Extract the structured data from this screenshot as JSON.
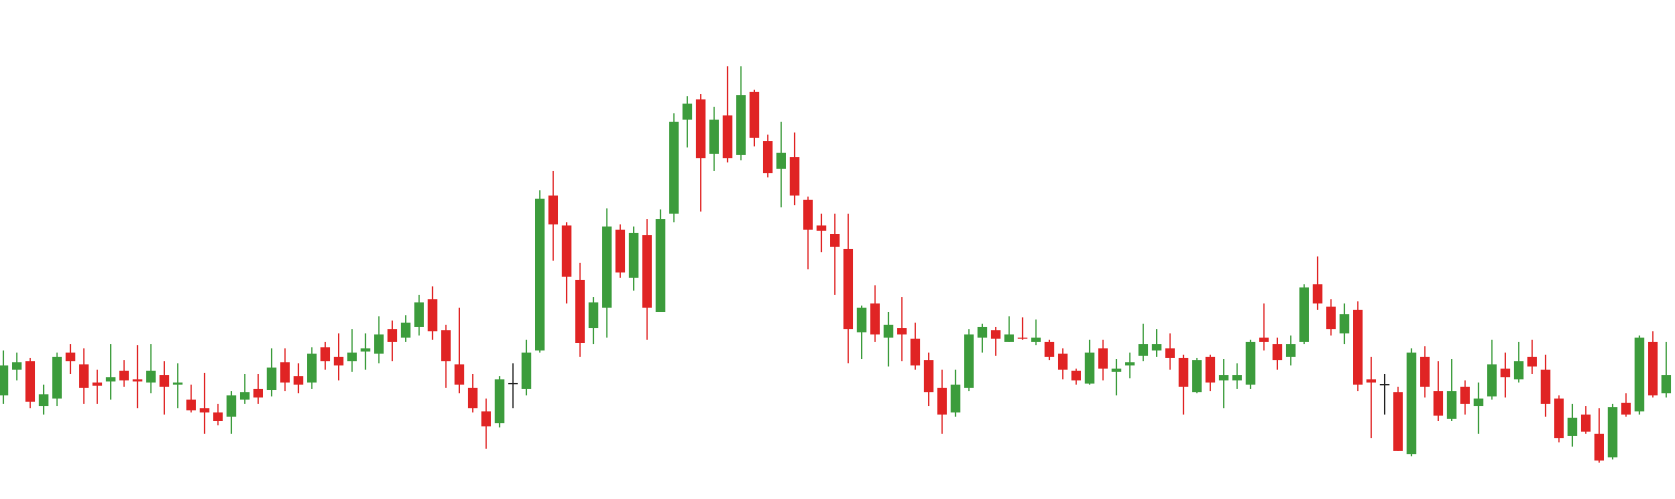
{
  "chart_data": {
    "type": "candlestick",
    "up_color": "#3c9c3c",
    "down_color": "#e02424",
    "flat_color": "#222222",
    "ylim": [
      0,
      467
    ],
    "open": [
      97,
      121,
      129,
      87,
      94,
      137,
      126,
      109,
      110,
      120,
      112,
      109,
      116,
      107,
      93,
      85,
      81,
      77,
      93,
      103,
      102,
      128,
      115,
      109,
      142,
      133,
      129,
      138,
      136,
      159,
      151,
      161,
      187,
      158,
      126,
      104,
      82,
      71,
      108,
      103,
      139,
      284,
      256,
      205,
      160,
      179,
      252,
      207,
      247,
      175,
      267,
      355,
      374,
      323,
      359,
      322,
      381,
      335,
      309,
      320,
      280,
      256,
      248,
      234,
      156,
      183,
      151,
      160,
      150,
      130,
      104,
      81,
      104,
      151,
      158,
      147,
      151,
      147,
      147,
      136,
      120,
      108,
      141,
      119,
      125,
      134,
      139,
      141,
      132,
      100,
      133,
      111,
      111,
      107,
      151,
      145,
      133,
      147,
      201,
      180,
      155,
      177,
      112,
      107,
      100,
      42,
      133,
      101,
      75,
      105,
      87,
      96,
      122,
      112,
      133,
      121,
      94,
      59,
      79,
      61,
      39,
      90,
      82,
      147,
      99
    ],
    "high": [
      139,
      137,
      132,
      107,
      137,
      145,
      141,
      121,
      145,
      130,
      144,
      145,
      129,
      127,
      107,
      118,
      89,
      101,
      117,
      117,
      141,
      141,
      127,
      142,
      147,
      155,
      159,
      155,
      171,
      167,
      172,
      191,
      199,
      163,
      179,
      117,
      94,
      115,
      127,
      149,
      289,
      307,
      259,
      221,
      189,
      272,
      257,
      255,
      262,
      271,
      361,
      377,
      379,
      367,
      405,
      405,
      383,
      341,
      353,
      343,
      283,
      267,
      267,
      267,
      181,
      200,
      175,
      189,
      165,
      137,
      121,
      121,
      159,
      164,
      161,
      171,
      170,
      168,
      149,
      141,
      122,
      149,
      149,
      131,
      137,
      164,
      159,
      155,
      135,
      132,
      135,
      131,
      127,
      149,
      183,
      151,
      153,
      201,
      227,
      187,
      183,
      185,
      133,
      117,
      105,
      141,
      143,
      129,
      131,
      111,
      109,
      149,
      137,
      147,
      149,
      135,
      97,
      89,
      87,
      85,
      89,
      99,
      153,
      157,
      147
    ],
    "low": [
      89,
      111,
      85,
      79,
      87,
      117,
      89,
      89,
      93,
      105,
      85,
      99,
      79,
      85,
      81,
      61,
      69,
      61,
      89,
      89,
      96,
      101,
      99,
      103,
      121,
      111,
      119,
      121,
      127,
      129,
      147,
      153,
      149,
      104,
      99,
      81,
      47,
      67,
      85,
      97,
      137,
      223,
      183,
      133,
      145,
      151,
      207,
      195,
      149,
      175,
      259,
      329,
      269,
      307,
      315,
      317,
      330,
      301,
      273,
      275,
      215,
      231,
      191,
      127,
      131,
      147,
      124,
      129,
      121,
      87,
      61,
      77,
      101,
      137,
      134,
      147,
      149,
      144,
      130,
      112,
      107,
      107,
      111,
      97,
      113,
      129,
      133,
      121,
      79,
      99,
      101,
      85,
      103,
      103,
      139,
      121,
      125,
      145,
      177,
      153,
      145,
      101,
      57,
      79,
      45,
      40,
      95,
      73,
      73,
      79,
      61,
      93,
      95,
      109,
      117,
      77,
      53,
      49,
      61,
      34,
      37,
      77,
      79,
      95,
      95
    ],
    "close": [
      125,
      128,
      91,
      98,
      133,
      129,
      104,
      106,
      114,
      111,
      110,
      120,
      105,
      109,
      83,
      81,
      73,
      97,
      100,
      95,
      123,
      109,
      107,
      136,
      129,
      125,
      137,
      141,
      154,
      147,
      165,
      184,
      157,
      129,
      107,
      85,
      68,
      112,
      108,
      137,
      281,
      257,
      208,
      146,
      184,
      255,
      212,
      249,
      179,
      262,
      353,
      370,
      319,
      355,
      319,
      378,
      338,
      305,
      324,
      284,
      252,
      251,
      236,
      159,
      179,
      154,
      163,
      154,
      125,
      100,
      79,
      107,
      154,
      161,
      150,
      154,
      150,
      151,
      133,
      121,
      111,
      137,
      122,
      122,
      128,
      145,
      145,
      132,
      105,
      130,
      109,
      116,
      116,
      147,
      147,
      130,
      145,
      198,
      183,
      159,
      173,
      107,
      109,
      107,
      45,
      137,
      105,
      78,
      101,
      89,
      94,
      126,
      114,
      129,
      124,
      89,
      57,
      76,
      63,
      36,
      86,
      79,
      151,
      97,
      116
    ]
  }
}
